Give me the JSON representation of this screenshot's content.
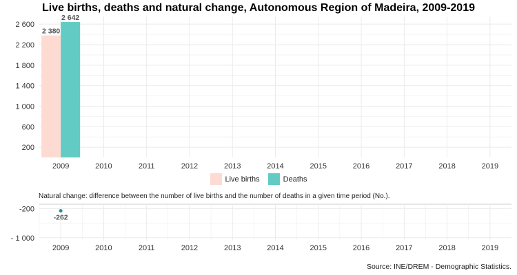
{
  "title": "Live births, deaths and natural change, Autonomous Region of Madeira, 2009-2019",
  "natural_change_caption": "Natural change: difference between the number of live births and the number of deaths in a given time period (No.).",
  "source": "Source: INE/DREM - Demographic Statistics.",
  "colors": {
    "live_births": "#fddbd3",
    "deaths": "#62ccc4",
    "natural_change": "#1f8f96",
    "grid": "#ebebeb"
  },
  "chart_data": [
    {
      "type": "bar",
      "categories": [
        "2009",
        "2010",
        "2011",
        "2012",
        "2013",
        "2014",
        "2015",
        "2016",
        "2017",
        "2018",
        "2019"
      ],
      "series": [
        {
          "name": "Live births",
          "values": [
            2380,
            null,
            null,
            null,
            null,
            null,
            null,
            null,
            null,
            null,
            null
          ],
          "labels": [
            "2 380"
          ]
        },
        {
          "name": "Deaths",
          "values": [
            2642,
            null,
            null,
            null,
            null,
            null,
            null,
            null,
            null,
            null,
            null
          ],
          "labels": [
            "2 642"
          ]
        }
      ],
      "ylim": [
        0,
        2750
      ],
      "yticks": [
        200,
        600,
        1000,
        1400,
        1800,
        2200,
        2600
      ],
      "ytick_labels": [
        "200",
        "600",
        "1 000",
        "1 400",
        "1 800",
        "2 200",
        "2 600"
      ],
      "legend": "bottom",
      "grid": true
    },
    {
      "type": "scatter",
      "categories": [
        "2009",
        "2010",
        "2011",
        "2012",
        "2013",
        "2014",
        "2015",
        "2016",
        "2017",
        "2018",
        "2019"
      ],
      "values": [
        -262,
        null,
        null,
        null,
        null,
        null,
        null,
        null,
        null,
        null,
        null
      ],
      "labels": [
        "-262"
      ],
      "ylim": [
        -1080,
        -80
      ],
      "yticks": [
        -200,
        -1000
      ],
      "ytick_labels": [
        "-200",
        "- 1 000"
      ],
      "grid": true
    }
  ]
}
